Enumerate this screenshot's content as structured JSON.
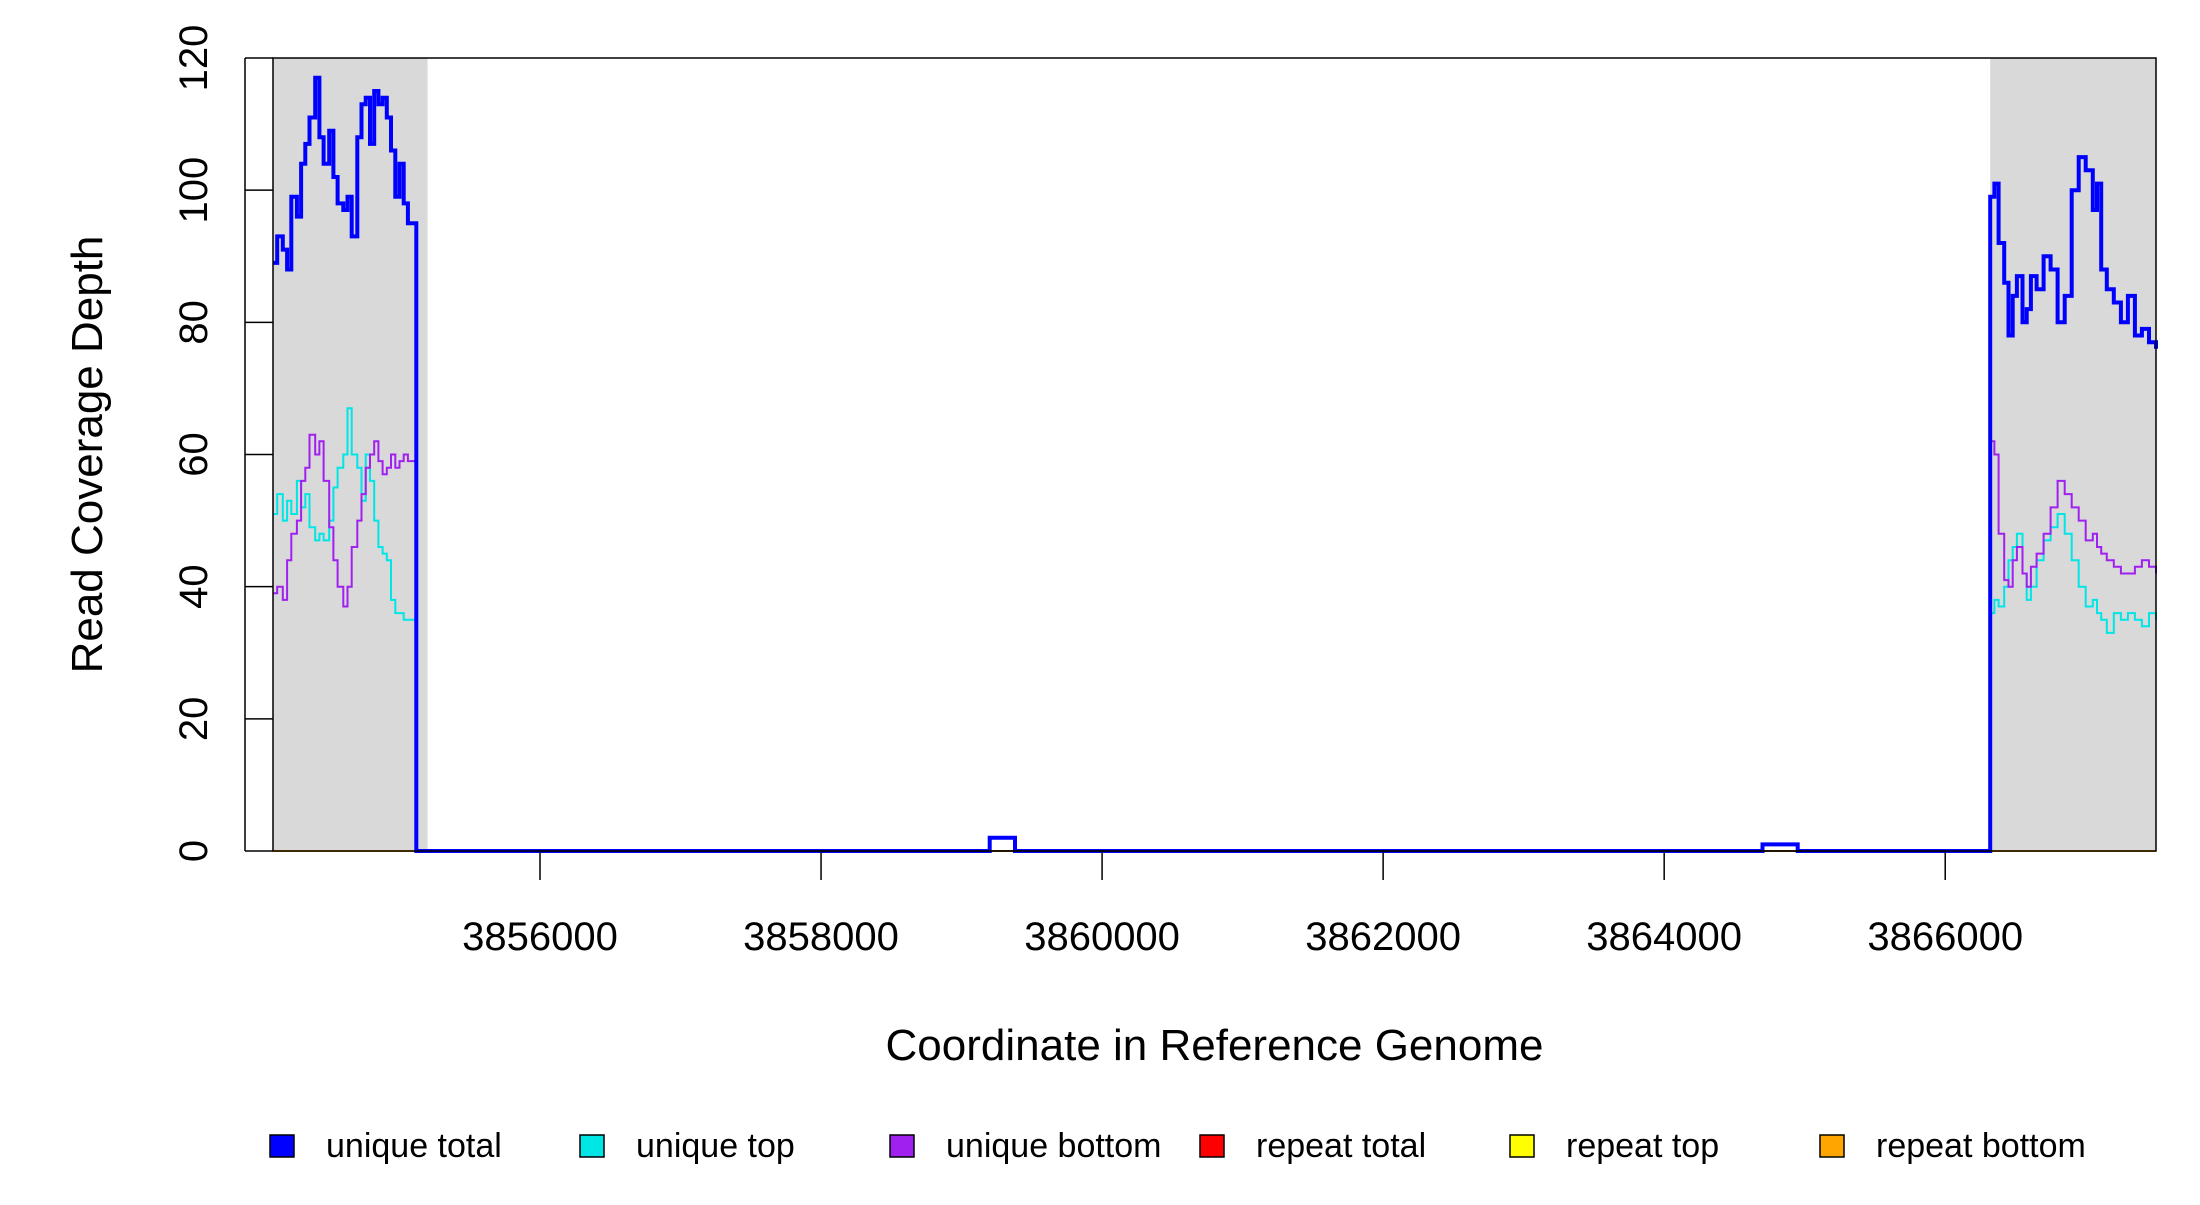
{
  "chart_data": {
    "type": "line",
    "title": "",
    "xlabel": "Coordinate in Reference Genome",
    "ylabel": "Read Coverage Depth",
    "xlim": [
      3854100,
      3867500
    ],
    "ylim": [
      0,
      120
    ],
    "x_ticks": [
      3856000,
      3858000,
      3860000,
      3862000,
      3864000,
      3866000
    ],
    "y_ticks": [
      0,
      20,
      40,
      60,
      80,
      100,
      120
    ],
    "shaded_regions": [
      {
        "x_start": 3854100,
        "x_end": 3855200
      },
      {
        "x_start": 3866320,
        "x_end": 3867500
      }
    ],
    "shade_color": "#d9d9d9",
    "grid": false,
    "legend_position": "bottom",
    "series": [
      {
        "name": "unique total",
        "color": "#0000ff",
        "x": [
          3854100,
          3854130,
          3854170,
          3854200,
          3854230,
          3854270,
          3854300,
          3854330,
          3854360,
          3854400,
          3854430,
          3854460,
          3854500,
          3854530,
          3854560,
          3854600,
          3854630,
          3854660,
          3854700,
          3854730,
          3854760,
          3854790,
          3854820,
          3854850,
          3854880,
          3854910,
          3854940,
          3854970,
          3855000,
          3855030,
          3855060,
          3855090,
          3855120,
          3855160,
          3855200,
          3855220,
          3856500,
          3858000,
          3859200,
          3859380,
          3860500,
          3862000,
          3864700,
          3864950,
          3866000,
          3866300,
          3866320,
          3866350,
          3866380,
          3866420,
          3866450,
          3866480,
          3866510,
          3866550,
          3866580,
          3866610,
          3866650,
          3866700,
          3866750,
          3866800,
          3866850,
          3866900,
          3866950,
          3867000,
          3867050,
          3867080,
          3867110,
          3867150,
          3867200,
          3867250,
          3867300,
          3867350,
          3867400,
          3867450,
          3867500
        ],
        "y": [
          89,
          93,
          91,
          88,
          99,
          96,
          104,
          107,
          111,
          117,
          108,
          104,
          109,
          102,
          98,
          97,
          99,
          93,
          108,
          113,
          114,
          107,
          115,
          113,
          114,
          111,
          106,
          99,
          104,
          98,
          95,
          95,
          0,
          0,
          0,
          0,
          0,
          0,
          2,
          0,
          0,
          0,
          1,
          0,
          0,
          0,
          99,
          101,
          92,
          86,
          78,
          84,
          87,
          80,
          82,
          87,
          85,
          90,
          88,
          80,
          84,
          100,
          105,
          103,
          97,
          101,
          88,
          85,
          83,
          80,
          84,
          78,
          79,
          77,
          76
        ]
      },
      {
        "name": "unique top",
        "color": "#00e5e5",
        "x": [
          3854100,
          3854130,
          3854170,
          3854200,
          3854230,
          3854270,
          3854300,
          3854330,
          3854360,
          3854400,
          3854430,
          3854460,
          3854500,
          3854530,
          3854560,
          3854600,
          3854630,
          3854660,
          3854700,
          3854730,
          3854760,
          3854790,
          3854820,
          3854850,
          3854880,
          3854910,
          3854940,
          3854970,
          3855000,
          3855030,
          3855060,
          3855090,
          3855120,
          3855160,
          3855200,
          3855220,
          3856500,
          3858000,
          3859200,
          3859380,
          3860500,
          3862000,
          3864700,
          3864950,
          3866000,
          3866300,
          3866320,
          3866350,
          3866380,
          3866420,
          3866450,
          3866480,
          3866510,
          3866550,
          3866580,
          3866610,
          3866650,
          3866700,
          3866750,
          3866800,
          3866850,
          3866900,
          3866950,
          3867000,
          3867050,
          3867080,
          3867110,
          3867150,
          3867200,
          3867250,
          3867300,
          3867350,
          3867400,
          3867450,
          3867500
        ],
        "y": [
          51,
          54,
          50,
          53,
          51,
          56,
          52,
          54,
          49,
          47,
          48,
          47,
          50,
          55,
          58,
          60,
          67,
          60,
          58,
          53,
          60,
          56,
          50,
          46,
          45,
          44,
          38,
          36,
          36,
          35,
          35,
          35,
          0,
          0,
          0,
          0,
          0,
          0,
          2,
          0,
          0,
          0,
          1,
          0,
          0,
          0,
          36,
          38,
          37,
          40,
          44,
          46,
          48,
          42,
          38,
          40,
          44,
          47,
          49,
          51,
          48,
          44,
          40,
          37,
          38,
          36,
          35,
          33,
          36,
          35,
          36,
          35,
          34,
          36,
          35
        ]
      },
      {
        "name": "unique bottom",
        "color": "#a020f0",
        "x": [
          3854100,
          3854130,
          3854170,
          3854200,
          3854230,
          3854270,
          3854300,
          3854330,
          3854360,
          3854400,
          3854430,
          3854460,
          3854500,
          3854530,
          3854560,
          3854600,
          3854630,
          3854660,
          3854700,
          3854730,
          3854760,
          3854790,
          3854820,
          3854850,
          3854880,
          3854910,
          3854940,
          3854970,
          3855000,
          3855030,
          3855060,
          3855090,
          3855120,
          3855160,
          3855200,
          3855220,
          3856500,
          3858000,
          3859200,
          3859380,
          3860500,
          3862000,
          3864700,
          3864950,
          3866000,
          3866300,
          3866320,
          3866350,
          3866380,
          3866420,
          3866450,
          3866480,
          3866510,
          3866550,
          3866580,
          3866610,
          3866650,
          3866700,
          3866750,
          3866800,
          3866850,
          3866900,
          3866950,
          3867000,
          3867050,
          3867080,
          3867110,
          3867150,
          3867200,
          3867250,
          3867300,
          3867350,
          3867400,
          3867450,
          3867500
        ],
        "y": [
          39,
          40,
          38,
          44,
          48,
          50,
          56,
          58,
          63,
          60,
          62,
          56,
          49,
          44,
          40,
          37,
          40,
          46,
          50,
          54,
          58,
          60,
          62,
          59,
          57,
          58,
          60,
          58,
          59,
          60,
          59,
          59,
          0,
          0,
          0,
          0,
          0,
          0,
          2,
          0,
          0,
          0,
          1,
          0,
          0,
          0,
          62,
          60,
          48,
          41,
          40,
          44,
          46,
          42,
          40,
          43,
          45,
          48,
          52,
          56,
          54,
          52,
          50,
          47,
          48,
          46,
          45,
          44,
          43,
          42,
          42,
          43,
          44,
          43,
          42
        ]
      },
      {
        "name": "repeat total",
        "color": "#ff0000",
        "x": [
          3854100,
          3867500
        ],
        "y": [
          0,
          0
        ]
      },
      {
        "name": "repeat top",
        "color": "#ffff00",
        "x": [
          3854100,
          3867500
        ],
        "y": [
          0,
          0
        ]
      },
      {
        "name": "repeat bottom",
        "color": "#ffa500",
        "x": [
          3854100,
          3867500
        ],
        "y": [
          0,
          0
        ]
      }
    ]
  }
}
